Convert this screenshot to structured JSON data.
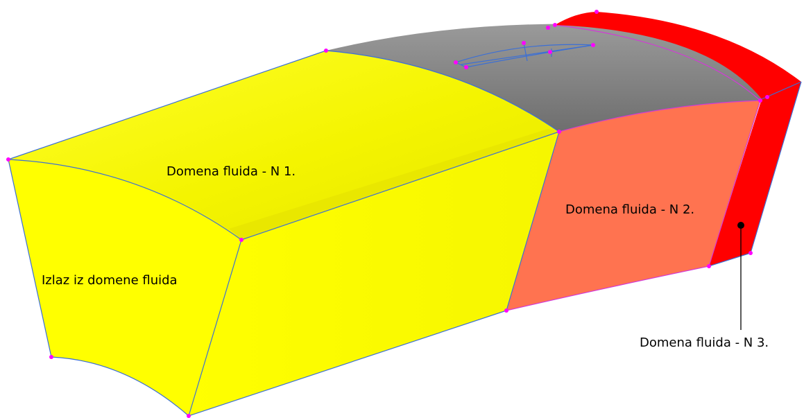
{
  "labels": {
    "domain_1": "Domena fluida - N 1.",
    "domain_2": "Domena fluida - N 2.",
    "domain_3": "Domena fluida - N 3.",
    "outlet": "Izlaz iz domene fluida"
  },
  "colors": {
    "domain_1": "#ffff00",
    "domain_2": "#ff7350",
    "domain_3": "#ff0000",
    "top_surface": "#7a7a7a",
    "vertex": "#ff00ff",
    "edge": "#3b6fd6",
    "background": "#ffffff"
  }
}
